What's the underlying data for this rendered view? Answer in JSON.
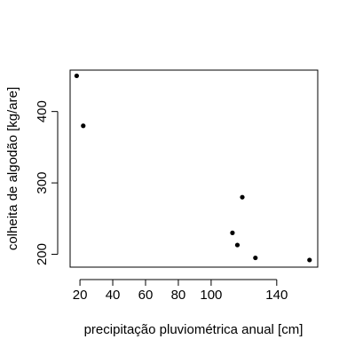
{
  "chart_data": {
    "type": "scatter",
    "title": "",
    "xlabel": "precipitação pluviométrica anual [cm]",
    "ylabel": "colheita de algodão [kg/are]",
    "x": [
      18,
      22,
      113,
      116,
      119,
      127,
      160
    ],
    "y": [
      450,
      380,
      230,
      213,
      280,
      195,
      192
    ],
    "xticks": [
      20,
      40,
      60,
      80,
      100,
      140
    ],
    "yticks": [
      200,
      300,
      400
    ],
    "xlim": [
      14,
      165
    ],
    "ylim": [
      182,
      458
    ],
    "grid": false,
    "legend": "none",
    "marker": "filled-circle",
    "point_color": "#000000"
  }
}
